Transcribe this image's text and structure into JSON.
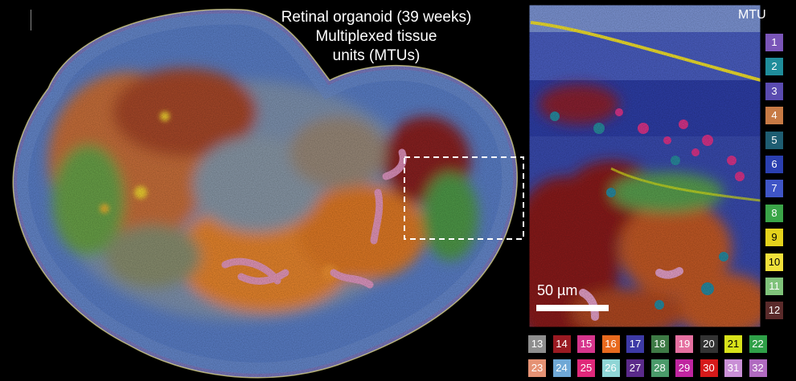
{
  "figure": {
    "title_lines": [
      "Retinal organoid (39 weeks)",
      "Multiplexed tissue",
      "units (MTUs)"
    ],
    "legend_title": "MTU",
    "scale_label": "50 µm",
    "legend": [
      {
        "id": "1",
        "color": "#7a55b8"
      },
      {
        "id": "2",
        "color": "#1f8d9b"
      },
      {
        "id": "3",
        "color": "#5a4bb0"
      },
      {
        "id": "4",
        "color": "#c77a45"
      },
      {
        "id": "5",
        "color": "#1e5d72"
      },
      {
        "id": "6",
        "color": "#2a3fb0"
      },
      {
        "id": "7",
        "color": "#3f55c7"
      },
      {
        "id": "8",
        "color": "#3aa548"
      },
      {
        "id": "9",
        "color": "#e4d21c"
      },
      {
        "id": "10",
        "color": "#f0e03a"
      },
      {
        "id": "11",
        "color": "#7fc27a"
      },
      {
        "id": "12",
        "color": "#5a2a2a"
      },
      {
        "id": "13",
        "color": "#8e8e8e"
      },
      {
        "id": "14",
        "color": "#9a1a22"
      },
      {
        "id": "15",
        "color": "#d6358c"
      },
      {
        "id": "16",
        "color": "#e86a1e"
      },
      {
        "id": "17",
        "color": "#3d3aa6"
      },
      {
        "id": "18",
        "color": "#3e7a45"
      },
      {
        "id": "19",
        "color": "#e56fa0"
      },
      {
        "id": "20",
        "color": "#333333"
      },
      {
        "id": "21",
        "color": "#d8e21a"
      },
      {
        "id": "22",
        "color": "#2fa048"
      },
      {
        "id": "23",
        "color": "#e59274"
      },
      {
        "id": "24",
        "color": "#6fa8d6"
      },
      {
        "id": "25",
        "color": "#e0287a"
      },
      {
        "id": "26",
        "color": "#8fd6d6"
      },
      {
        "id": "27",
        "color": "#5a2a8a"
      },
      {
        "id": "28",
        "color": "#4a9a6a"
      },
      {
        "id": "29",
        "color": "#c025a0"
      },
      {
        "id": "30",
        "color": "#d61a1a"
      },
      {
        "id": "31",
        "color": "#c98fd6"
      },
      {
        "id": "32",
        "color": "#b06ac0"
      }
    ]
  }
}
